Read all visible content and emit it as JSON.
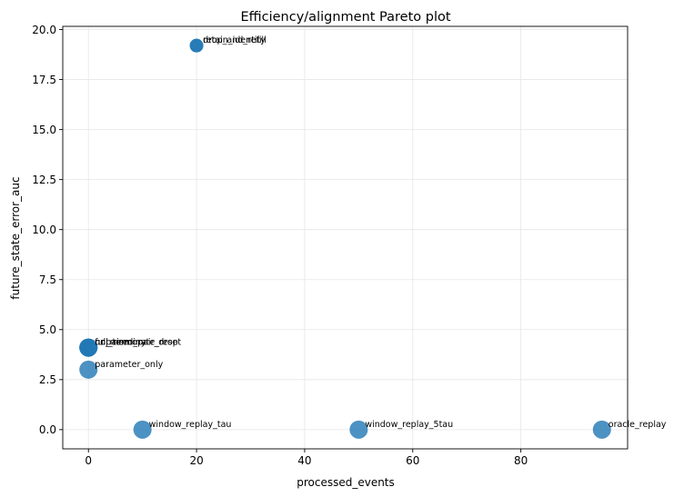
{
  "chart_data": {
    "type": "scatter",
    "title": "Efficiency/alignment Pareto plot",
    "xlabel": "processed_events",
    "ylabel": "future_state_error_auc",
    "xlim": [
      -4.75,
      99.75
    ],
    "ylim": [
      -0.96,
      20.16
    ],
    "xticks": [
      0,
      20,
      40,
      60,
      80
    ],
    "yticks": [
      0.0,
      2.5,
      5.0,
      7.5,
      10.0,
      12.5,
      15.0,
      17.5,
      20.0
    ],
    "xtick_labels": [
      "0",
      "20",
      "40",
      "60",
      "80"
    ],
    "ytick_labels": [
      "0.0",
      "2.5",
      "5.0",
      "7.5",
      "10.0",
      "12.5",
      "15.0",
      "17.5",
      "20.0"
    ],
    "grid": true,
    "color": "#1f77b4",
    "points": [
      {
        "label": "drop_and_refill",
        "x": 20,
        "y": 19.2,
        "size": "small"
      },
      {
        "label": "retain_identity",
        "x": 20,
        "y": 19.2,
        "size": "small"
      },
      {
        "label": "full_terminate_reset",
        "x": 0,
        "y": 4.1,
        "size": "large"
      },
      {
        "label": "no_memory",
        "x": 0,
        "y": 4.1,
        "size": "large"
      },
      {
        "label": "unpaired_pair_drop",
        "x": 0,
        "y": 4.1,
        "size": "large"
      },
      {
        "label": "parameter_only",
        "x": 0,
        "y": 3.0,
        "size": "large"
      },
      {
        "label": "window_replay_tau",
        "x": 10,
        "y": 0.0,
        "size": "large"
      },
      {
        "label": "window_replay_5tau",
        "x": 50,
        "y": 0.0,
        "size": "large"
      },
      {
        "label": "oracle_replay",
        "x": 95,
        "y": 0.0,
        "size": "large"
      }
    ]
  }
}
